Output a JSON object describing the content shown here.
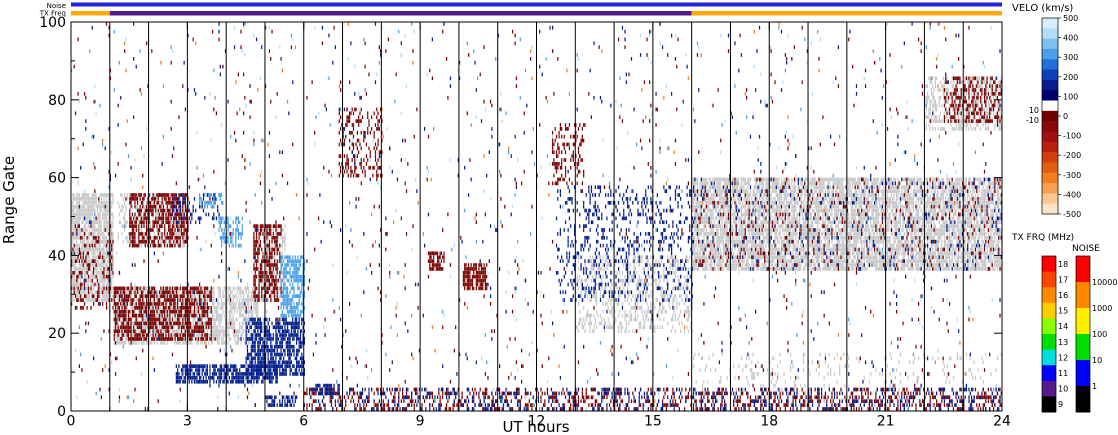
{
  "chart_data": {
    "type": "heatmap",
    "xlabel": "UT hours",
    "ylabel": "Range Gate",
    "xlim": [
      0,
      24
    ],
    "ylim": [
      0,
      100
    ],
    "x_ticks": [
      "0",
      "3",
      "6",
      "9",
      "12",
      "15",
      "18",
      "21",
      "24"
    ],
    "y_ticks": [
      "0",
      "20",
      "40",
      "60",
      "80",
      "100"
    ],
    "hour_lines": [
      1,
      2,
      3,
      4,
      5,
      6,
      7,
      8,
      9,
      10,
      11,
      12,
      13,
      14,
      15,
      16,
      17,
      18,
      19,
      20,
      21,
      22,
      23
    ],
    "status_bars": {
      "noise_label": "Noise",
      "txfreq_label": "TX Freq",
      "noise_color": "#2222dd",
      "txfreq_segments": [
        {
          "start": 0,
          "end": 1,
          "color": "#ffaa00"
        },
        {
          "start": 1,
          "end": 16,
          "color": "#551a8b"
        },
        {
          "start": 16,
          "end": 24,
          "color": "#ffaa00"
        }
      ]
    },
    "velocity_scale": {
      "title": "VELO (km/s)",
      "ticks": [
        "500",
        "400",
        "300",
        "200",
        "100",
        "0",
        "-100",
        "-200",
        "-300",
        "-400",
        "-500"
      ],
      "extra_ticks": [
        "10",
        "-10"
      ],
      "colors": [
        "#d8eefc",
        "#b0dcf8",
        "#7cc0f0",
        "#4aa0e8",
        "#2070d8",
        "#1040b8",
        "#081c8c",
        "#000070",
        "#ffffff",
        "#700000",
        "#8c0808",
        "#a01010",
        "#b82010",
        "#d04010",
        "#e06010",
        "#f08020",
        "#f8a050",
        "#fcc890",
        "#fde4c8"
      ]
    },
    "txfreq_scale": {
      "title": "TX FRQ (MHz)",
      "ticks": [
        "18",
        "17",
        "16",
        "15",
        "14",
        "13",
        "12",
        "11",
        "10",
        "9"
      ],
      "colors": [
        "#ff0000",
        "#ff4400",
        "#ff8800",
        "#ffcc00",
        "#88ff00",
        "#00dd00",
        "#00dddd",
        "#0000ff",
        "#551a8b",
        "#000000"
      ]
    },
    "noise_scale": {
      "title": "NOISE",
      "ticks": [
        "10000",
        "1000",
        "100",
        "10",
        "1"
      ],
      "colors": [
        "#ff0000",
        "#ff8800",
        "#ffee00",
        "#00dd00",
        "#0000ff",
        "#000000"
      ]
    },
    "series": [
      {
        "color": "#c8c8c8",
        "regions": [
          {
            "t0": 0.0,
            "t1": 1.1,
            "g0": 28,
            "g1": 56,
            "d": 0.8
          },
          {
            "t0": 1.1,
            "t1": 4.8,
            "g0": 17,
            "g1": 32,
            "d": 0.7
          },
          {
            "t0": 1.2,
            "t1": 3.0,
            "g0": 42,
            "g1": 56,
            "d": 0.35
          },
          {
            "t0": 4.9,
            "t1": 5.5,
            "g0": 28,
            "g1": 48,
            "d": 0.4
          },
          {
            "t0": 16.0,
            "t1": 24.0,
            "g0": 36,
            "g1": 60,
            "d": 0.75
          },
          {
            "t0": 22.0,
            "t1": 24.0,
            "g0": 72,
            "g1": 86,
            "d": 0.45
          },
          {
            "t0": 13.0,
            "t1": 16.0,
            "g0": 20,
            "g1": 40,
            "d": 0.3
          },
          {
            "t0": 16.0,
            "t1": 24.0,
            "g0": 5,
            "g1": 15,
            "d": 0.08
          }
        ]
      },
      {
        "color": "#7a0000",
        "regions": [
          {
            "t0": 1.1,
            "t1": 3.6,
            "g0": 18,
            "g1": 32,
            "d": 0.6
          },
          {
            "t0": 1.5,
            "t1": 3.0,
            "g0": 42,
            "g1": 56,
            "d": 0.55
          },
          {
            "t0": 0.0,
            "t1": 1.1,
            "g0": 26,
            "g1": 48,
            "d": 0.2
          },
          {
            "t0": 4.7,
            "t1": 5.4,
            "g0": 28,
            "g1": 48,
            "d": 0.5
          },
          {
            "t0": 6.9,
            "t1": 8.0,
            "g0": 60,
            "g1": 78,
            "d": 0.3
          },
          {
            "t0": 9.2,
            "t1": 9.6,
            "g0": 36,
            "g1": 41,
            "d": 0.8
          },
          {
            "t0": 10.1,
            "t1": 10.7,
            "g0": 31,
            "g1": 38,
            "d": 0.8
          },
          {
            "t0": 12.4,
            "t1": 13.2,
            "g0": 58,
            "g1": 74,
            "d": 0.3
          },
          {
            "t0": 22.5,
            "t1": 24.0,
            "g0": 74,
            "g1": 86,
            "d": 0.35
          },
          {
            "t0": 6.0,
            "t1": 24.0,
            "g0": 0,
            "g1": 6,
            "d": 0.28
          },
          {
            "t0": 16.0,
            "t1": 24.0,
            "g0": 36,
            "g1": 60,
            "d": 0.07
          },
          {
            "t0": 0.0,
            "t1": 24.0,
            "g0": 0,
            "g1": 100,
            "d": 0.009
          }
        ]
      },
      {
        "color": "#001c8c",
        "regions": [
          {
            "t0": 2.7,
            "t1": 5.3,
            "g0": 7,
            "g1": 12,
            "d": 0.75
          },
          {
            "t0": 4.5,
            "t1": 6.0,
            "g0": 9,
            "g1": 24,
            "d": 0.65
          },
          {
            "t0": 5.0,
            "t1": 5.8,
            "g0": 1,
            "g1": 4,
            "d": 0.5
          },
          {
            "t0": 6.3,
            "t1": 6.9,
            "g0": 4,
            "g1": 7,
            "d": 0.6
          },
          {
            "t0": 2.6,
            "t1": 3.8,
            "g0": 48,
            "g1": 56,
            "d": 0.3
          },
          {
            "t0": 12.5,
            "t1": 16.0,
            "g0": 28,
            "g1": 58,
            "d": 0.18
          },
          {
            "t0": 6.0,
            "t1": 24.0,
            "g0": 0,
            "g1": 6,
            "d": 0.16
          },
          {
            "t0": 16.0,
            "t1": 24.0,
            "g0": 36,
            "g1": 60,
            "d": 0.05
          },
          {
            "t0": 0.0,
            "t1": 24.0,
            "g0": 0,
            "g1": 100,
            "d": 0.006
          }
        ]
      },
      {
        "color": "#4aa0e8",
        "regions": [
          {
            "t0": 5.4,
            "t1": 6.0,
            "g0": 24,
            "g1": 40,
            "d": 0.7
          },
          {
            "t0": 3.8,
            "t1": 4.4,
            "g0": 42,
            "g1": 50,
            "d": 0.45
          },
          {
            "t0": 3.3,
            "t1": 3.9,
            "g0": 52,
            "g1": 56,
            "d": 0.3
          },
          {
            "t0": 0.0,
            "t1": 24.0,
            "g0": 0,
            "g1": 100,
            "d": 0.003
          }
        ]
      },
      {
        "color": "#b0dcf8",
        "regions": [
          {
            "t0": 0.0,
            "t1": 24.0,
            "g0": 0,
            "g1": 100,
            "d": 0.004
          }
        ]
      },
      {
        "color": "#f08020",
        "regions": [
          {
            "t0": 0.0,
            "t1": 24.0,
            "g0": 0,
            "g1": 100,
            "d": 0.0015
          }
        ]
      }
    ]
  }
}
